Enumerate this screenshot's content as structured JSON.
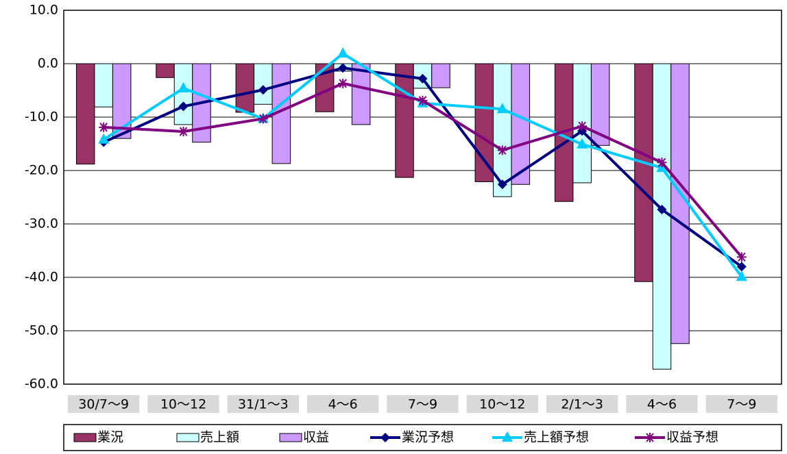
{
  "chart_data": {
    "type": "bar-line",
    "categories": [
      "30/7～9",
      "10～12",
      "31/1～3",
      "4～6",
      "7～9",
      "10～12",
      "2/1～3",
      "4～6",
      "7～9"
    ],
    "ylim": [
      -60,
      10
    ],
    "yticks": [
      {
        "value": 10,
        "label": "10.0"
      },
      {
        "value": 0,
        "label": "0.0"
      },
      {
        "value": -10,
        "label": "-10.0"
      },
      {
        "value": -20,
        "label": "-20.0"
      },
      {
        "value": -30,
        "label": "-30.0"
      },
      {
        "value": -40,
        "label": "-40.0"
      },
      {
        "value": -50,
        "label": "-50.0"
      },
      {
        "value": -60,
        "label": "-60.0"
      }
    ],
    "grid": true,
    "series": [
      {
        "name": "業況",
        "type": "bar",
        "color": "#993366",
        "values": [
          -18.8,
          -2.6,
          -9.1,
          -9.0,
          -21.3,
          -22.1,
          -25.8,
          -40.8,
          null
        ]
      },
      {
        "name": "売上額",
        "type": "bar",
        "color": "#ccffff",
        "values": [
          -8.1,
          -11.4,
          -7.6,
          -1.4,
          -4.6,
          -24.9,
          -22.3,
          -57.2,
          null
        ]
      },
      {
        "name": "収益",
        "type": "bar",
        "color": "#cc99ff",
        "values": [
          -14.0,
          -14.7,
          -18.7,
          -11.4,
          -4.5,
          -22.6,
          -15.3,
          -52.4,
          null
        ]
      },
      {
        "name": "業況予想",
        "type": "line",
        "marker": "diamond",
        "color": "#000080",
        "values": [
          -14.7,
          -8.0,
          -4.9,
          -0.8,
          -2.8,
          -22.6,
          -12.6,
          -27.3,
          -38.0
        ]
      },
      {
        "name": "売上額予想",
        "type": "line",
        "marker": "triangle",
        "color": "#00ccff",
        "values": [
          -14.2,
          -4.6,
          -10.3,
          1.9,
          -7.4,
          -8.5,
          -15.1,
          -19.5,
          -39.9
        ]
      },
      {
        "name": "収益予想",
        "type": "line",
        "marker": "star",
        "color": "#800080",
        "values": [
          -11.9,
          -12.7,
          -10.3,
          -3.7,
          -6.9,
          -16.2,
          -11.7,
          -18.5,
          -36.2
        ]
      }
    ]
  }
}
